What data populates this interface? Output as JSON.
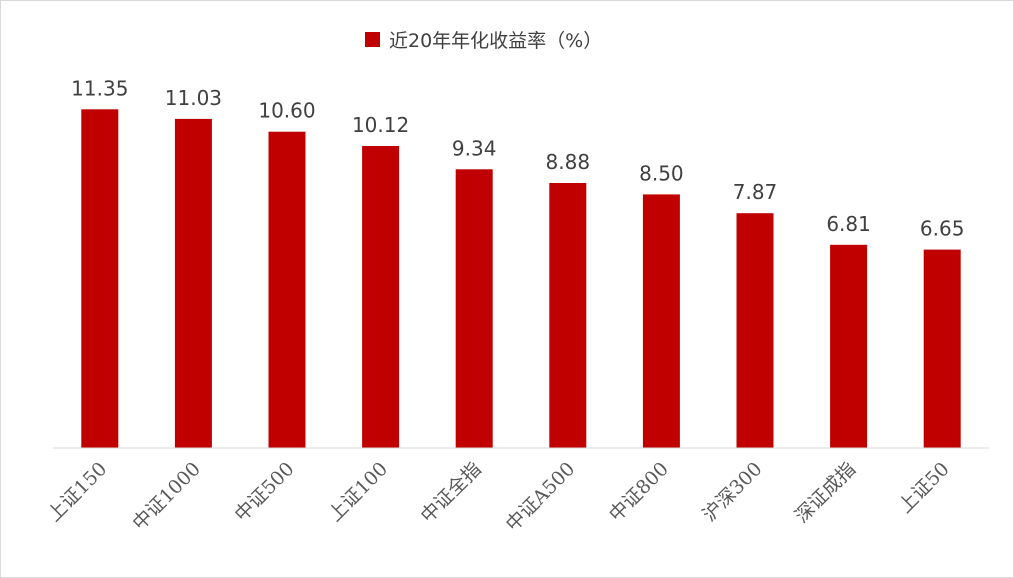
{
  "chart_data": {
    "type": "bar",
    "title": "",
    "xlabel": "",
    "ylabel": "",
    "legend": {
      "position": "top-center"
    },
    "grid": false,
    "ylim": [
      0,
      12.3
    ],
    "categories": [
      "上证150",
      "中证1000",
      "中证500",
      "上证100",
      "中证全指",
      "中证A500",
      "中证800",
      "沪深300",
      "深证成指",
      "上证50"
    ],
    "series": [
      {
        "name": "近20年年化收益率（%）",
        "color": "#C00000",
        "values": [
          11.35,
          11.03,
          10.6,
          10.12,
          9.34,
          8.88,
          8.5,
          7.87,
          6.81,
          6.65
        ],
        "labels": [
          "11.35",
          "11.03",
          "10.60",
          "10.12",
          "9.34",
          "8.88",
          "8.50",
          "7.87",
          "6.81",
          "6.65"
        ]
      }
    ]
  },
  "colors": {
    "bar": "#C00000",
    "axis": "#d9d9d9",
    "text": "#404040"
  }
}
